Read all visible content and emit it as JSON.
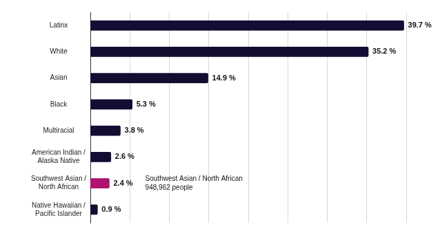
{
  "chart_data": {
    "type": "bar",
    "orientation": "horizontal",
    "categories": [
      "Latinx",
      "White",
      "Asian",
      "Black",
      "Multiracial",
      "American Indian / Alaska Native",
      "Southwest Asian / North African",
      "Native Hawaiian / Pacific Islander"
    ],
    "values": [
      39.7,
      35.2,
      14.9,
      5.3,
      3.8,
      2.6,
      2.4,
      0.9
    ],
    "value_labels": [
      "39.7 %",
      "35.2 %",
      "14.9 %",
      "5.3 %",
      "3.8 %",
      "2.6 %",
      "2.4 %",
      "0.9 %"
    ],
    "colors": [
      "#120d33",
      "#120d33",
      "#120d33",
      "#120d33",
      "#120d33",
      "#120d33",
      "#b0126f",
      "#120d33"
    ],
    "xlim": [
      0,
      40
    ],
    "xticks": [
      0,
      5,
      10,
      15,
      20,
      25,
      30,
      35,
      40
    ],
    "grid": true,
    "data_labels": true,
    "tick_labels": "y",
    "annotation": {
      "category": "Southwest Asian / North African",
      "text": [
        "Southwest Asian / North African",
        "948,962 people"
      ]
    }
  }
}
